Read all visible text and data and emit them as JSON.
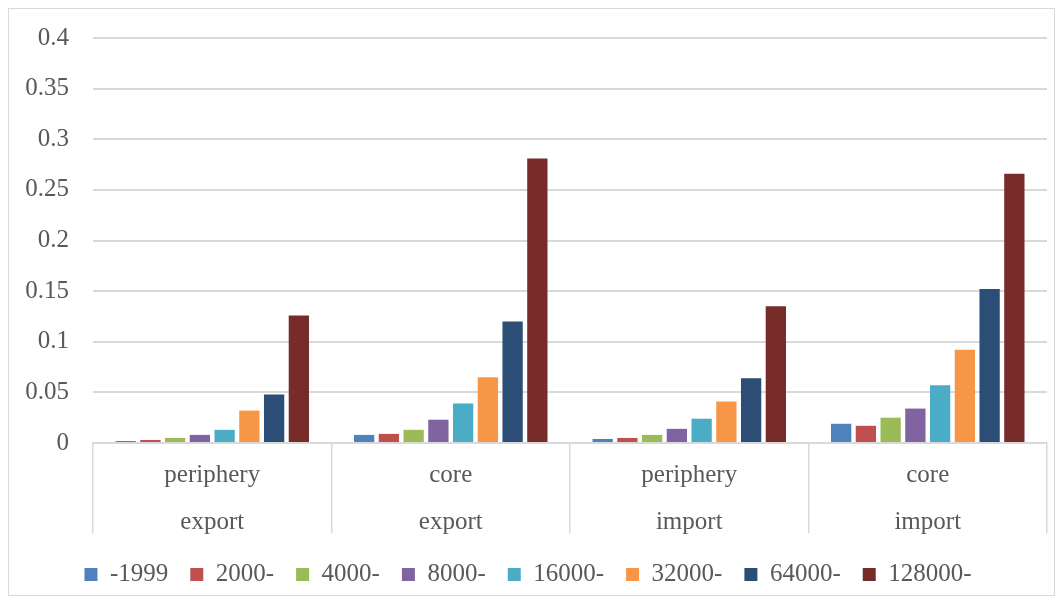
{
  "chart_data": {
    "type": "bar",
    "categories": [
      "periphery\nexport",
      "core\nexport",
      "periphery\nimport",
      "core\nimport"
    ],
    "series": [
      {
        "name": "-1999",
        "color": "#4f81bd",
        "values": [
          0.002,
          0.008,
          0.004,
          0.019
        ]
      },
      {
        "name": "2000-",
        "color": "#c0504d",
        "values": [
          0.003,
          0.009,
          0.005,
          0.017
        ]
      },
      {
        "name": "4000-",
        "color": "#9bbb59",
        "values": [
          0.005,
          0.013,
          0.008,
          0.025
        ]
      },
      {
        "name": "8000-",
        "color": "#8064a2",
        "values": [
          0.008,
          0.023,
          0.014,
          0.034
        ]
      },
      {
        "name": "16000-",
        "color": "#4bacc6",
        "values": [
          0.013,
          0.039,
          0.024,
          0.057
        ]
      },
      {
        "name": "32000-",
        "color": "#f79646",
        "values": [
          0.032,
          0.065,
          0.041,
          0.092
        ]
      },
      {
        "name": "64000-",
        "color": "#2c4d75",
        "values": [
          0.048,
          0.12,
          0.064,
          0.152
        ]
      },
      {
        "name": "128000-",
        "color": "#772c2a",
        "values": [
          0.126,
          0.281,
          0.135,
          0.266
        ]
      }
    ],
    "ylim": [
      0,
      0.4
    ],
    "yticks": [
      0,
      0.05,
      0.1,
      0.15,
      0.2,
      0.25,
      0.3,
      0.35,
      0.4
    ],
    "grid": "y",
    "legend": "bottom"
  }
}
